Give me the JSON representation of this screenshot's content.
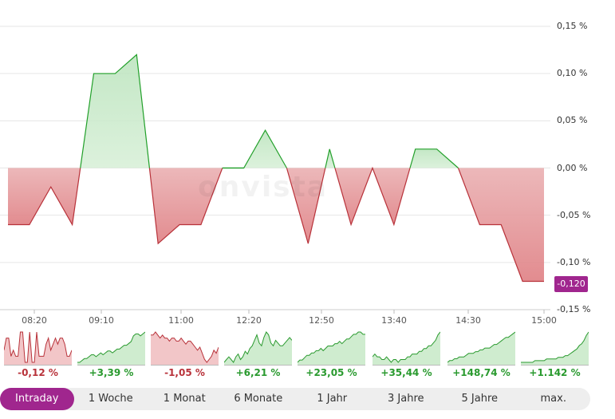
{
  "chart_data": {
    "type": "area",
    "baseline": 0.0,
    "y_ticks": [
      "0,15 %",
      "0,10 %",
      "0,05 %",
      "0,00 %",
      "-0,05 %",
      "-0,10 %",
      "-0,15 %"
    ],
    "y_tick_values": [
      0.15,
      0.1,
      0.05,
      0.0,
      -0.05,
      -0.1,
      -0.15
    ],
    "ylim": [
      -0.15,
      0.15
    ],
    "x_ticks": [
      "08:20",
      "09:10",
      "11:00",
      "12:20",
      "12:50",
      "13:40",
      "14:30",
      "15:00"
    ],
    "series": [
      {
        "values": [
          -0.06,
          -0.06,
          -0.02,
          -0.06,
          0.1,
          0.1,
          0.12,
          -0.08,
          -0.06,
          -0.06,
          0.0,
          0.0,
          0.04,
          0.0,
          -0.08,
          0.02,
          -0.06,
          0.0,
          -0.06,
          0.02,
          0.02,
          0.0,
          -0.06,
          -0.06,
          -0.12,
          -0.12
        ]
      }
    ],
    "current_value": "-0,120",
    "positive_color": "#22a02a",
    "negative_color": "#b8323a",
    "grid": true
  },
  "watermark": "onvista",
  "sparklines": [
    {
      "label": "-0,12 %",
      "trend": "negative",
      "values": [
        3,
        5,
        5,
        2,
        3,
        2,
        2,
        6,
        6,
        1,
        1,
        6,
        1,
        1,
        6,
        2,
        2,
        2,
        4,
        5,
        3,
        4,
        5,
        4,
        5,
        5,
        4,
        2,
        2,
        3
      ]
    },
    {
      "label": "+3,39 %",
      "trend": "positive",
      "values": [
        1,
        1,
        2,
        3,
        3,
        4,
        5,
        5,
        4,
        5,
        6,
        5,
        6,
        7,
        7,
        6,
        7,
        8,
        8,
        9,
        10,
        10,
        11,
        12,
        15,
        16,
        16,
        15,
        16,
        17
      ]
    },
    {
      "label": "-1,05 %",
      "trend": "negative",
      "values": [
        10,
        10,
        11,
        10,
        9,
        10,
        9,
        9,
        8,
        9,
        9,
        8,
        8,
        9,
        8,
        7,
        8,
        8,
        7,
        6,
        5,
        6,
        4,
        2,
        1,
        2,
        3,
        5,
        4,
        6
      ]
    },
    {
      "label": "+6,21 %",
      "trend": "positive",
      "values": [
        2,
        3,
        4,
        3,
        2,
        4,
        5,
        3,
        4,
        6,
        5,
        7,
        8,
        10,
        12,
        9,
        8,
        11,
        13,
        12,
        9,
        8,
        10,
        9,
        8,
        8,
        9,
        10,
        11,
        10
      ]
    },
    {
      "label": "+23,05 %",
      "trend": "positive",
      "values": [
        2,
        3,
        3,
        4,
        5,
        5,
        6,
        6,
        7,
        7,
        8,
        7,
        8,
        9,
        9,
        9,
        10,
        10,
        11,
        10,
        11,
        12,
        12,
        13,
        14,
        14,
        15,
        15,
        14,
        14
      ]
    },
    {
      "label": "+35,44 %",
      "trend": "positive",
      "values": [
        7,
        8,
        7,
        7,
        6,
        6,
        7,
        6,
        5,
        6,
        6,
        5,
        6,
        6,
        6,
        7,
        7,
        8,
        8,
        8,
        9,
        9,
        10,
        10,
        11,
        11,
        12,
        13,
        15,
        16
      ]
    },
    {
      "label": "+148,74 %",
      "trend": "positive",
      "values": [
        1,
        2,
        2,
        3,
        3,
        4,
        4,
        4,
        5,
        6,
        6,
        6,
        7,
        7,
        8,
        8,
        9,
        9,
        9,
        10,
        11,
        11,
        12,
        13,
        14,
        15,
        15,
        16,
        17,
        18
      ]
    },
    {
      "label": "+1.142 %",
      "trend": "positive",
      "values": [
        1,
        1,
        1,
        1,
        1,
        1,
        2,
        2,
        2,
        2,
        2,
        3,
        3,
        3,
        3,
        3,
        4,
        4,
        4,
        5,
        5,
        6,
        7,
        8,
        9,
        11,
        12,
        14,
        17,
        19
      ]
    }
  ],
  "tabs": [
    "Intraday",
    "1 Woche",
    "1 Monat",
    "6 Monate",
    "1 Jahr",
    "3 Jahre",
    "5 Jahre",
    "max."
  ],
  "active_tab": "Intraday"
}
